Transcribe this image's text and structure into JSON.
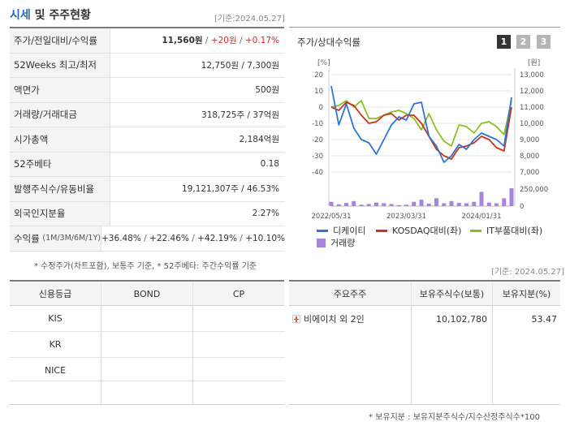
{
  "header": {
    "title_main": "시세",
    "title_rest": " 및 주주현황",
    "base_date": "[기준:2024.05.27]"
  },
  "market": {
    "rows": [
      {
        "label": "주가/전일대비/수익률",
        "price": "11,560원",
        "change": "+20원",
        "rate": "+0.17%"
      },
      {
        "label": "52Weeks 최고/최저",
        "value": "12,750원 / 7,300원"
      },
      {
        "label": "액면가",
        "value": "500원"
      },
      {
        "label": "거래량/거래대금",
        "value": "318,725주 / 37억원"
      },
      {
        "label": "시가총액",
        "value": "2,184억원"
      },
      {
        "label": "52주베타",
        "value": "0.18"
      },
      {
        "label": "발행주식수/유동비율",
        "value": "19,121,307주 / 46.53%"
      },
      {
        "label": "외국인지분율",
        "value": "2.27%"
      },
      {
        "label": "수익률",
        "label_sub": "(1M/3M/6M/1Y)",
        "r1": "+36.48%",
        "r2": "+22.46%",
        "r3": "+42.19%",
        "r4": "+10.10%"
      }
    ],
    "footnote": "* 수정주가(차트포함), 보통주 기준, * 52주베타: 주간수익률 기준"
  },
  "chart": {
    "title": "주가/상대수익률",
    "period_buttons": [
      "1",
      "2",
      "3"
    ],
    "left_unit": "[%]",
    "right_unit": "[원]",
    "left_ticks": [
      "20",
      "10",
      "0",
      "-10",
      "-20",
      "-30",
      "-40"
    ],
    "right_ticks": [
      "13,000",
      "12,000",
      "11,000",
      "10,000",
      "9,000",
      "8,000",
      "7,000"
    ],
    "vol_ticks": [
      "250,000",
      "0"
    ],
    "x_ticks": [
      "2022/05/31",
      "2023/03/31",
      "2024/01/31"
    ],
    "legend": [
      "디케이티",
      "KOSDAQ대비(좌)",
      "IT부품대비(좌)",
      "거래량"
    ],
    "colors": {
      "stock": "#2f74d0",
      "kosdaq": "#c8321e",
      "it": "#8cbf26",
      "volume": "#a884e0"
    }
  },
  "chart_data": {
    "type": "line",
    "x": [
      "2022/05",
      "2022/06",
      "2022/07",
      "2022/08",
      "2022/09",
      "2022/10",
      "2022/11",
      "2022/12",
      "2023/01",
      "2023/02",
      "2023/03",
      "2023/04",
      "2023/05",
      "2023/06",
      "2023/07",
      "2023/08",
      "2023/09",
      "2023/10",
      "2023/11",
      "2023/12",
      "2024/01",
      "2024/02",
      "2024/03",
      "2024/04",
      "2024/05"
    ],
    "series": [
      {
        "name": "디케이티",
        "axis": "left",
        "values": [
          13,
          -11,
          2,
          -13,
          -20,
          -22,
          -29,
          -20,
          -11,
          -6,
          -8,
          2,
          3,
          -18,
          -24,
          -34,
          -30,
          -23,
          -26,
          -20,
          -16,
          -18,
          -20,
          -24,
          6
        ]
      },
      {
        "name": "KOSDAQ대비(좌)",
        "axis": "left",
        "values": [
          0,
          -2,
          3,
          1,
          -5,
          -10,
          -9,
          -5,
          -4,
          -8,
          -5,
          -5,
          -10,
          -18,
          -26,
          -30,
          -32,
          -25,
          -24,
          -22,
          -18,
          -20,
          -25,
          -27,
          0
        ]
      },
      {
        "name": "IT부품대비(좌)",
        "axis": "left",
        "values": [
          0,
          1,
          4,
          0,
          4,
          -7,
          -7,
          -5,
          -3,
          -2,
          -4,
          -7,
          -14,
          -4,
          -14,
          -21,
          -24,
          -11,
          -12,
          -16,
          -10,
          -9,
          -12,
          -17,
          4
        ]
      },
      {
        "name": "거래량",
        "axis": "volume",
        "values": [
          60000,
          25000,
          45000,
          70000,
          20000,
          30000,
          50000,
          40000,
          30000,
          15000,
          20000,
          60000,
          90000,
          35000,
          110000,
          40000,
          70000,
          45000,
          40000,
          60000,
          200000,
          50000,
          40000,
          110000,
          250000
        ]
      }
    ],
    "ylim": [
      -40,
      20
    ],
    "ylim_right": [
      7000,
      13000
    ],
    "ylim_volume": [
      0,
      250000
    ]
  },
  "credit": {
    "headers": [
      "신용등급",
      "BOND",
      "CP"
    ],
    "rows": [
      [
        "KIS",
        "",
        ""
      ],
      [
        "KR",
        "",
        ""
      ],
      [
        "NICE",
        "",
        ""
      ],
      [
        "",
        "",
        ""
      ]
    ]
  },
  "shareholders": {
    "base_date": "[기준: 2024.05.27]",
    "headers": [
      "주요주주",
      "보유주식수(보통)",
      "보유지분(%)"
    ],
    "rows": [
      {
        "name": "비에이치 외 2인",
        "shares": "10,102,780",
        "pct": "53.47"
      }
    ],
    "footnote": "* 보유지분 : 보유지분주식수/지수산정주식수*100"
  }
}
